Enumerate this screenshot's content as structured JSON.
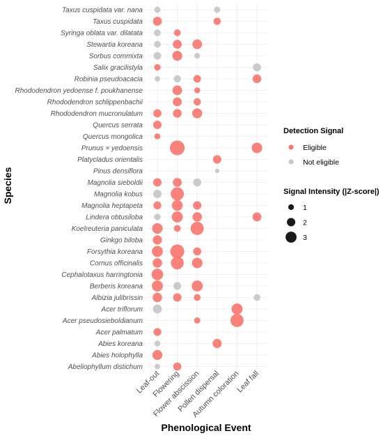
{
  "chart_data": {
    "type": "scatter",
    "xlabel": "Phenological Event",
    "ylabel": "Species",
    "events": [
      "Leaf-out",
      "Flowering",
      "Flower abscission",
      "Pollen dispersal",
      "Autumn coloration",
      "Leaf fall"
    ],
    "species": [
      "Taxus cuspidata var. nana",
      "Taxus cuspidata",
      "Syringa oblata var. dilatata",
      "Stewartia koreana",
      "Sorbus commixta",
      "Salix gracilistyla",
      "Robinia pseudoacacia",
      "Rhododendron yedoense f. poukhanense",
      "Rhododendron schlippenbachii",
      "Rhododendron mucronulatum",
      "Quercus serrata",
      "Quercus mongolica",
      "Prunus × yedoensis",
      "Platycladus orientalis",
      "Pinus densiflora",
      "Magnolia sieboldii",
      "Magnolia kobus",
      "Magnolia heptapeta",
      "Lindera obtusiloba",
      "Koelreuteria paniculata",
      "Ginkgo biloba",
      "Forsythia koreana",
      "Cornus officinalis",
      "Cephalotaxus harringtonia",
      "Berberis koreana",
      "Albizia julibrissin",
      "Acer triflorum",
      "Acer pseudosieboldianum",
      "Acer palmatum",
      "Abies koreana",
      "Abies holophylla",
      "Abeliophyllum distichum"
    ],
    "points": [
      {
        "species": "Taxus cuspidata var. nana",
        "event": "Leaf-out",
        "z": 1.2,
        "eligible": false
      },
      {
        "species": "Taxus cuspidata var. nana",
        "event": "Pollen dispersal",
        "z": 1.2,
        "eligible": false
      },
      {
        "species": "Taxus cuspidata",
        "event": "Leaf-out",
        "z": 2.2,
        "eligible": true
      },
      {
        "species": "Taxus cuspidata",
        "event": "Pollen dispersal",
        "z": 1.6,
        "eligible": true
      },
      {
        "species": "Syringa oblata var. dilatata",
        "event": "Leaf-out",
        "z": 1.4,
        "eligible": false
      },
      {
        "species": "Syringa oblata var. dilatata",
        "event": "Flowering",
        "z": 1.4,
        "eligible": true
      },
      {
        "species": "Stewartia koreana",
        "event": "Leaf-out",
        "z": 1.4,
        "eligible": false
      },
      {
        "species": "Stewartia koreana",
        "event": "Flowering",
        "z": 2.2,
        "eligible": true
      },
      {
        "species": "Stewartia koreana",
        "event": "Flower abscission",
        "z": 2.5,
        "eligible": true
      },
      {
        "species": "Sorbus commixta",
        "event": "Leaf-out",
        "z": 1.7,
        "eligible": false
      },
      {
        "species": "Sorbus commixta",
        "event": "Flowering",
        "z": 2.6,
        "eligible": true
      },
      {
        "species": "Sorbus commixta",
        "event": "Flower abscission",
        "z": 1.0,
        "eligible": false
      },
      {
        "species": "Salix gracilistyla",
        "event": "Leaf-out",
        "z": 1.3,
        "eligible": true
      },
      {
        "species": "Salix gracilistyla",
        "event": "Leaf fall",
        "z": 1.9,
        "eligible": false
      },
      {
        "species": "Robinia pseudoacacia",
        "event": "Leaf-out",
        "z": 0.9,
        "eligible": false
      },
      {
        "species": "Robinia pseudoacacia",
        "event": "Flowering",
        "z": 1.6,
        "eligible": false
      },
      {
        "species": "Robinia pseudoacacia",
        "event": "Flower abscission",
        "z": 1.7,
        "eligible": true
      },
      {
        "species": "Robinia pseudoacacia",
        "event": "Leaf fall",
        "z": 2.1,
        "eligible": true
      },
      {
        "species": "Rhododendron yedoense f. poukhanense",
        "event": "Flowering",
        "z": 2.5,
        "eligible": true
      },
      {
        "species": "Rhododendron yedoense f. poukhanense",
        "event": "Flower abscission",
        "z": 1.1,
        "eligible": true
      },
      {
        "species": "Rhododendron schlippenbachii",
        "event": "Flowering",
        "z": 2.2,
        "eligible": true
      },
      {
        "species": "Rhododendron schlippenbachii",
        "event": "Flower abscission",
        "z": 1.6,
        "eligible": true
      },
      {
        "species": "Rhododendron mucronulatum",
        "event": "Leaf-out",
        "z": 1.9,
        "eligible": true
      },
      {
        "species": "Rhododendron mucronulatum",
        "event": "Flowering",
        "z": 2.1,
        "eligible": true
      },
      {
        "species": "Rhododendron mucronulatum",
        "event": "Flower abscission",
        "z": 2.6,
        "eligible": true
      },
      {
        "species": "Quercus serrata",
        "event": "Leaf-out",
        "z": 2.0,
        "eligible": true
      },
      {
        "species": "Quercus mongolica",
        "event": "Leaf-out",
        "z": 1.1,
        "eligible": true
      },
      {
        "species": "Prunus × yedoensis",
        "event": "Flowering",
        "z": 4.4,
        "eligible": true
      },
      {
        "species": "Prunus × yedoensis",
        "event": "Leaf fall",
        "z": 2.8,
        "eligible": true
      },
      {
        "species": "Platycladus orientalis",
        "event": "Pollen dispersal",
        "z": 2.0,
        "eligible": true
      },
      {
        "species": "Pinus densiflora",
        "event": "Pollen dispersal",
        "z": 0.5,
        "eligible": false
      },
      {
        "species": "Magnolia sieboldii",
        "event": "Leaf-out",
        "z": 2.0,
        "eligible": true
      },
      {
        "species": "Magnolia sieboldii",
        "event": "Flowering",
        "z": 2.2,
        "eligible": true
      },
      {
        "species": "Magnolia sieboldii",
        "event": "Flower abscission",
        "z": 1.9,
        "eligible": false
      },
      {
        "species": "Magnolia kobus",
        "event": "Leaf-out",
        "z": 2.0,
        "eligible": false
      },
      {
        "species": "Magnolia kobus",
        "event": "Flowering",
        "z": 3.8,
        "eligible": true
      },
      {
        "species": "Magnolia heptapeta",
        "event": "Leaf-out",
        "z": 1.8,
        "eligible": true
      },
      {
        "species": "Magnolia heptapeta",
        "event": "Flowering",
        "z": 2.9,
        "eligible": true
      },
      {
        "species": "Magnolia heptapeta",
        "event": "Flower abscission",
        "z": 2.0,
        "eligible": true
      },
      {
        "species": "Lindera obtusiloba",
        "event": "Leaf-out",
        "z": 1.3,
        "eligible": false
      },
      {
        "species": "Lindera obtusiloba",
        "event": "Flowering",
        "z": 3.0,
        "eligible": true
      },
      {
        "species": "Lindera obtusiloba",
        "event": "Flower abscission",
        "z": 2.4,
        "eligible": true
      },
      {
        "species": "Lindera obtusiloba",
        "event": "Leaf fall",
        "z": 2.2,
        "eligible": true
      },
      {
        "species": "Koelreuteria paniculata",
        "event": "Leaf-out",
        "z": 2.8,
        "eligible": true
      },
      {
        "species": "Koelreuteria paniculata",
        "event": "Flowering",
        "z": 1.4,
        "eligible": true
      },
      {
        "species": "Koelreuteria paniculata",
        "event": "Flower abscission",
        "z": 3.8,
        "eligible": true
      },
      {
        "species": "Ginkgo biloba",
        "event": "Leaf-out",
        "z": 2.3,
        "eligible": true
      },
      {
        "species": "Forsythia koreana",
        "event": "Leaf-out",
        "z": 3.0,
        "eligible": true
      },
      {
        "species": "Forsythia koreana",
        "event": "Flowering",
        "z": 4.1,
        "eligible": true
      },
      {
        "species": "Forsythia koreana",
        "event": "Flower abscission",
        "z": 1.9,
        "eligible": true
      },
      {
        "species": "Cornus officinalis",
        "event": "Leaf-out",
        "z": 2.4,
        "eligible": true
      },
      {
        "species": "Cornus officinalis",
        "event": "Flowering",
        "z": 3.7,
        "eligible": true
      },
      {
        "species": "Cornus officinalis",
        "event": "Flower abscission",
        "z": 2.8,
        "eligible": true
      },
      {
        "species": "Cephalotaxus harringtonia",
        "event": "Leaf-out",
        "z": 3.2,
        "eligible": true
      },
      {
        "species": "Berberis koreana",
        "event": "Leaf-out",
        "z": 3.0,
        "eligible": true
      },
      {
        "species": "Berberis koreana",
        "event": "Flowering",
        "z": 1.8,
        "eligible": false
      },
      {
        "species": "Berberis koreana",
        "event": "Flower abscission",
        "z": 3.0,
        "eligible": true
      },
      {
        "species": "Albizia julibrissin",
        "event": "Leaf-out",
        "z": 2.4,
        "eligible": true
      },
      {
        "species": "Albizia julibrissin",
        "event": "Flowering",
        "z": 2.0,
        "eligible": true
      },
      {
        "species": "Albizia julibrissin",
        "event": "Flower abscission",
        "z": 1.4,
        "eligible": true
      },
      {
        "species": "Albizia julibrissin",
        "event": "Leaf fall",
        "z": 1.4,
        "eligible": false
      },
      {
        "species": "Acer triflorum",
        "event": "Leaf-out",
        "z": 2.2,
        "eligible": false
      },
      {
        "species": "Acer triflorum",
        "event": "Autumn coloration",
        "z": 3.0,
        "eligible": true
      },
      {
        "species": "Acer pseudosieboldianum",
        "event": "Flower abscission",
        "z": 1.2,
        "eligible": true
      },
      {
        "species": "Acer pseudosieboldianum",
        "event": "Autumn coloration",
        "z": 3.8,
        "eligible": true
      },
      {
        "species": "Acer palmatum",
        "event": "Leaf-out",
        "z": 1.8,
        "eligible": true
      },
      {
        "species": "Abies koreana",
        "event": "Leaf-out",
        "z": 1.1,
        "eligible": false
      },
      {
        "species": "Abies koreana",
        "event": "Pollen dispersal",
        "z": 2.3,
        "eligible": true
      },
      {
        "species": "Abies holophylla",
        "event": "Leaf-out",
        "z": 2.6,
        "eligible": true
      },
      {
        "species": "Abeliophyllum distichum",
        "event": "Leaf-out",
        "z": 0.9,
        "eligible": false
      },
      {
        "species": "Abeliophyllum distichum",
        "event": "Flowering",
        "z": 1.9,
        "eligible": true
      }
    ],
    "legend": {
      "color_title": "Detection Signal",
      "color_items": [
        {
          "label": "Eligible",
          "color": "#F8766D"
        },
        {
          "label": "Not eligible",
          "color": "#C8C8C8"
        }
      ],
      "size_title": "Signal Intensity (|Z-score|)",
      "size_items": [
        1,
        2,
        3
      ],
      "placement": "right"
    },
    "grid": true
  }
}
